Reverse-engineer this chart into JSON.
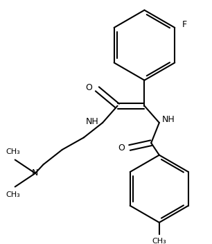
{
  "background": "#ffffff",
  "line_color": "#000000",
  "line_width": 1.5,
  "figsize": [
    3.06,
    3.52
  ],
  "dpi": 100,
  "xlim": [
    0,
    306
  ],
  "ylim": [
    0,
    352
  ]
}
